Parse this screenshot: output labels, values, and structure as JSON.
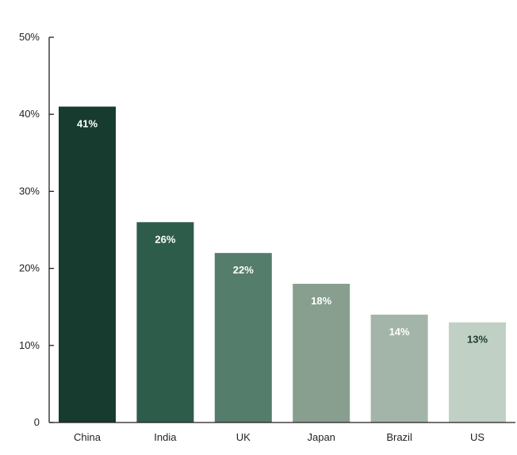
{
  "chart_data": {
    "type": "bar",
    "categories": [
      "China",
      "India",
      "UK",
      "Japan",
      "Brazil",
      "US"
    ],
    "values": [
      41,
      26,
      22,
      18,
      14,
      13
    ],
    "value_labels": [
      "41%",
      "26%",
      "22%",
      "18%",
      "14%",
      "13%"
    ],
    "title": "",
    "xlabel": "",
    "ylabel": "",
    "ylim": [
      0,
      50
    ],
    "yticks": [
      0,
      10,
      20,
      30,
      40,
      50
    ],
    "ytick_labels": [
      "0",
      "10%",
      "20%",
      "30%",
      "40%",
      "50%"
    ],
    "grid": false,
    "legend": "none",
    "colors": {
      "bars": [
        "#173b2f",
        "#2e5c4b",
        "#557d6b",
        "#889f90",
        "#a3b5a8",
        "#c0d0c4"
      ],
      "labels": [
        "#ffffff",
        "#ffffff",
        "#ffffff",
        "#ffffff",
        "#ffffff",
        "#1f3a30"
      ],
      "axis": "#231f20"
    }
  }
}
